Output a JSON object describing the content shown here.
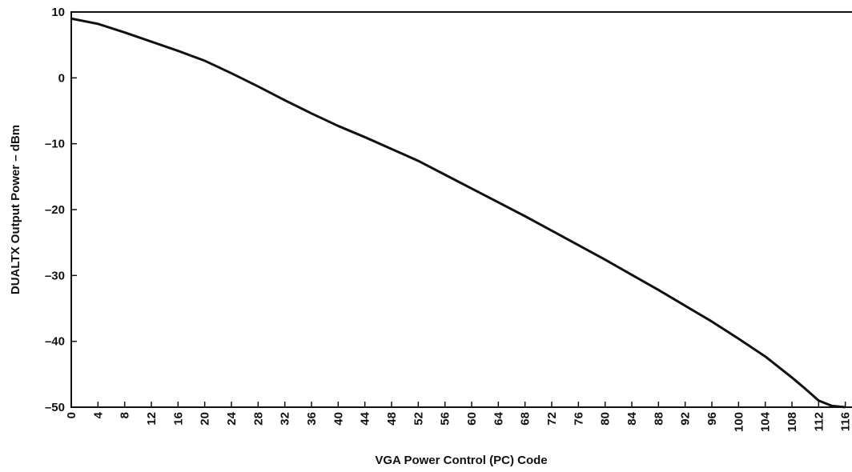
{
  "chart_data": {
    "type": "line",
    "xlabel": "VGA Power Control (PC) Code",
    "ylabel": "DUALTX Output Power – dBm",
    "x": [
      0,
      4,
      8,
      12,
      16,
      20,
      24,
      28,
      32,
      36,
      40,
      44,
      48,
      52,
      56,
      60,
      64,
      68,
      72,
      76,
      80,
      84,
      88,
      92,
      96,
      100,
      104,
      108,
      110,
      112,
      114,
      116
    ],
    "series": [
      {
        "color": "#111111",
        "values": [
          9,
          8.2,
          6.9,
          5.5,
          4.1,
          2.6,
          0.7,
          -1.3,
          -3.4,
          -5.4,
          -7.3,
          -9.0,
          -10.8,
          -12.6,
          -14.7,
          -16.8,
          -18.9,
          -21.0,
          -23.2,
          -25.4,
          -27.6,
          -29.9,
          -32.2,
          -34.6,
          -37.0,
          -39.6,
          -42.3,
          -45.5,
          -47.2,
          -49.0,
          -49.8,
          -50
        ]
      }
    ],
    "xlim": [
      0,
      117
    ],
    "ylim": [
      -50,
      10
    ],
    "xticks": [
      0,
      4,
      8,
      12,
      16,
      20,
      24,
      28,
      32,
      36,
      40,
      44,
      48,
      52,
      56,
      60,
      64,
      68,
      72,
      76,
      80,
      84,
      88,
      92,
      96,
      100,
      104,
      108,
      112,
      116
    ],
    "yticks": [
      {
        "value": -50,
        "label": "–50"
      },
      {
        "value": -40,
        "label": "–40"
      },
      {
        "value": -30,
        "label": "–30"
      },
      {
        "value": -20,
        "label": "–20"
      },
      {
        "value": -10,
        "label": "–10"
      },
      0,
      10
    ],
    "grid": false
  }
}
